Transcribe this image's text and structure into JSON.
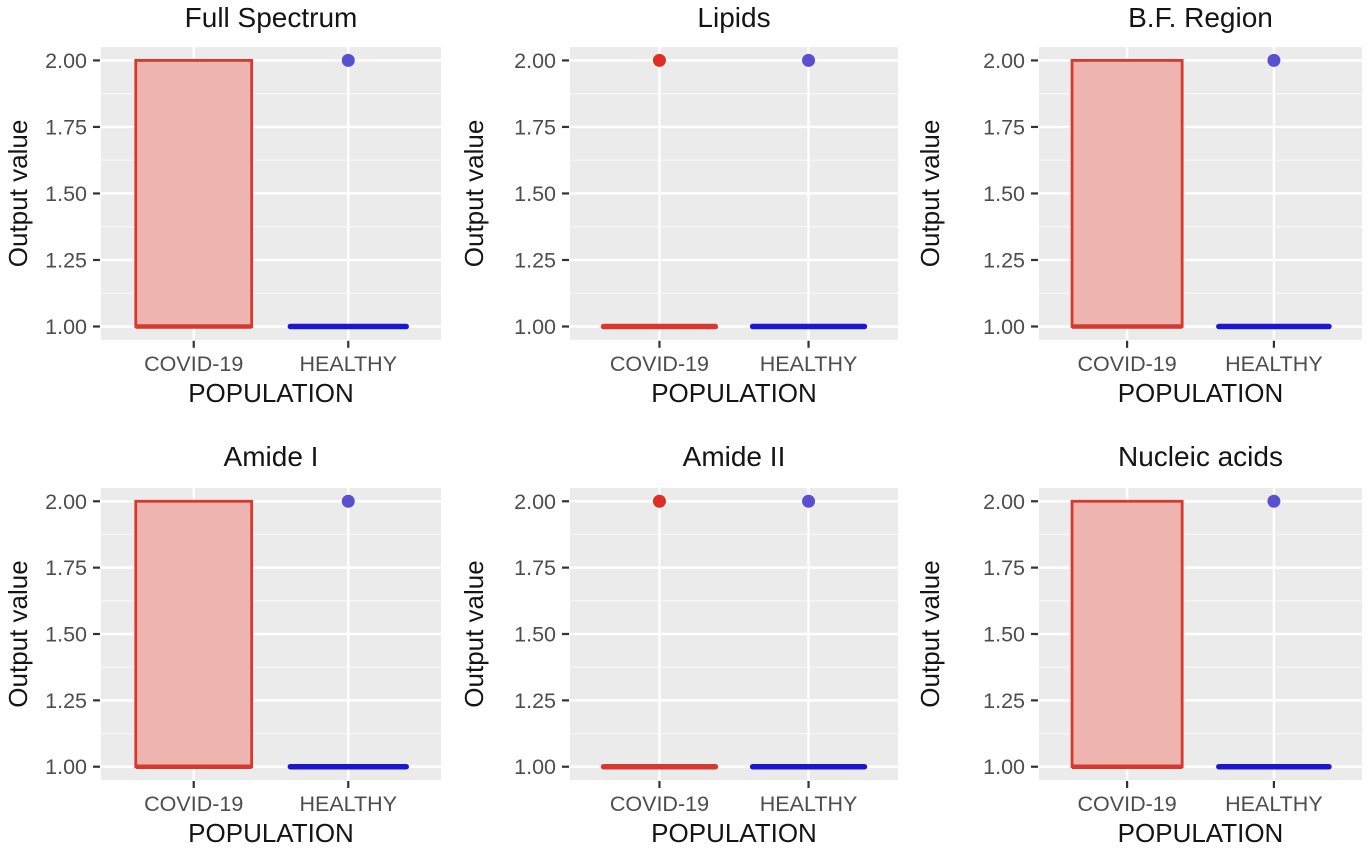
{
  "figure": {
    "layout": {
      "rows": 2,
      "cols": 3
    },
    "colors": {
      "background": "#ffffff",
      "panel_background": "#ebebeb",
      "grid_major": "#ffffff",
      "grid_minor": "#f6f6f6",
      "tick_mark": "#333333",
      "axis_text": "#4d4d4d",
      "axis_title": "#141414",
      "plot_title": "#141414",
      "covid_stroke": "#d6392f",
      "covid_fill": "#eeb4af",
      "covid_point": "#dd2f24",
      "healthy_stroke": "#1b16d0",
      "healthy_point": "#5a50cf"
    }
  },
  "axes": {
    "ylabel": "Output value",
    "xlabel": "POPULATION",
    "categories": [
      "COVID-19",
      "HEALTHY"
    ],
    "ytick_labels": [
      "1.00",
      "1.25",
      "1.50",
      "1.75",
      "2.00"
    ],
    "ytick_values": [
      1.0,
      1.25,
      1.5,
      1.75,
      2.0
    ],
    "y_minor_values": [
      1.125,
      1.375,
      1.625,
      1.875
    ],
    "ylim": [
      0.95,
      2.05
    ]
  },
  "chart_data": [
    {
      "type": "boxplot",
      "title": "Full Spectrum",
      "xlabel": "POPULATION",
      "ylabel": "Output value",
      "categories": [
        "COVID-19",
        "HEALTHY"
      ],
      "ylim": [
        1.0,
        2.0
      ],
      "groups": [
        {
          "label": "COVID-19",
          "color": "red",
          "box_low": 1.0,
          "box_high": 2.0,
          "median": 1.0,
          "outliers": []
        },
        {
          "label": "HEALTHY",
          "color": "blue",
          "box_low": 1.0,
          "box_high": 1.0,
          "median": 1.0,
          "outliers": [
            2.0
          ]
        }
      ]
    },
    {
      "type": "boxplot",
      "title": "Lipids",
      "xlabel": "POPULATION",
      "ylabel": "Output value",
      "categories": [
        "COVID-19",
        "HEALTHY"
      ],
      "ylim": [
        1.0,
        2.0
      ],
      "groups": [
        {
          "label": "COVID-19",
          "color": "red",
          "box_low": 1.0,
          "box_high": 1.0,
          "median": 1.0,
          "outliers": [
            2.0
          ]
        },
        {
          "label": "HEALTHY",
          "color": "blue",
          "box_low": 1.0,
          "box_high": 1.0,
          "median": 1.0,
          "outliers": [
            2.0
          ]
        }
      ]
    },
    {
      "type": "boxplot",
      "title": "B.F. Region",
      "xlabel": "POPULATION",
      "ylabel": "Output value",
      "categories": [
        "COVID-19",
        "HEALTHY"
      ],
      "ylim": [
        1.0,
        2.0
      ],
      "groups": [
        {
          "label": "COVID-19",
          "color": "red",
          "box_low": 1.0,
          "box_high": 2.0,
          "median": 1.0,
          "outliers": []
        },
        {
          "label": "HEALTHY",
          "color": "blue",
          "box_low": 1.0,
          "box_high": 1.0,
          "median": 1.0,
          "outliers": [
            2.0
          ]
        }
      ]
    },
    {
      "type": "boxplot",
      "title": "Amide I",
      "xlabel": "POPULATION",
      "ylabel": "Output value",
      "categories": [
        "COVID-19",
        "HEALTHY"
      ],
      "ylim": [
        1.0,
        2.0
      ],
      "groups": [
        {
          "label": "COVID-19",
          "color": "red",
          "box_low": 1.0,
          "box_high": 2.0,
          "median": 1.0,
          "outliers": []
        },
        {
          "label": "HEALTHY",
          "color": "blue",
          "box_low": 1.0,
          "box_high": 1.0,
          "median": 1.0,
          "outliers": [
            2.0
          ]
        }
      ]
    },
    {
      "type": "boxplot",
      "title": "Amide II",
      "xlabel": "POPULATION",
      "ylabel": "Output value",
      "categories": [
        "COVID-19",
        "HEALTHY"
      ],
      "ylim": [
        1.0,
        2.0
      ],
      "groups": [
        {
          "label": "COVID-19",
          "color": "red",
          "box_low": 1.0,
          "box_high": 1.0,
          "median": 1.0,
          "outliers": [
            2.0
          ]
        },
        {
          "label": "HEALTHY",
          "color": "blue",
          "box_low": 1.0,
          "box_high": 1.0,
          "median": 1.0,
          "outliers": [
            2.0
          ]
        }
      ]
    },
    {
      "type": "boxplot",
      "title": "Nucleic acids",
      "xlabel": "POPULATION",
      "ylabel": "Output value",
      "categories": [
        "COVID-19",
        "HEALTHY"
      ],
      "ylim": [
        1.0,
        2.0
      ],
      "groups": [
        {
          "label": "COVID-19",
          "color": "red",
          "box_low": 1.0,
          "box_high": 2.0,
          "median": 1.0,
          "outliers": []
        },
        {
          "label": "HEALTHY",
          "color": "blue",
          "box_low": 1.0,
          "box_high": 1.0,
          "median": 1.0,
          "outliers": [
            2.0
          ]
        }
      ]
    }
  ]
}
